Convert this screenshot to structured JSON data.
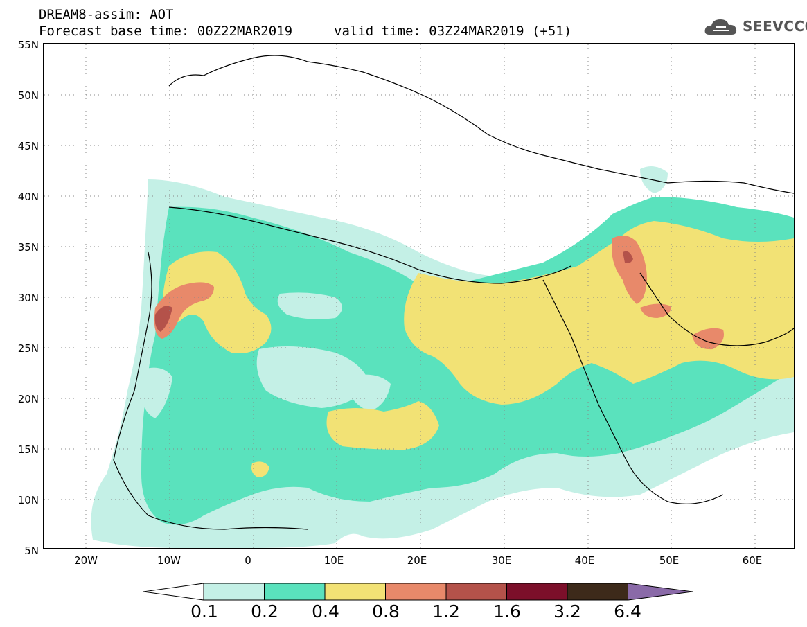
{
  "header": {
    "line1": "DREAM8-assim: AOT",
    "line2": "Forecast base time: 00Z22MAR2019",
    "line3": "valid time: 03Z24MAR2019 (+51)"
  },
  "logo": {
    "text": "SEEVCCC",
    "icon": "cloud-icon"
  },
  "map": {
    "lat_labels": [
      "55N",
      "50N",
      "45N",
      "40N",
      "35N",
      "30N",
      "25N",
      "20N",
      "15N",
      "10N",
      "5N"
    ],
    "lon_labels": [
      "20W",
      "10W",
      "0",
      "10E",
      "20E",
      "30E",
      "40E",
      "50E",
      "60E"
    ],
    "lat_range": [
      5,
      55
    ],
    "lon_range": [
      -25,
      65
    ],
    "gridlines": "dotted"
  },
  "colorbar": {
    "labels": [
      "0.1",
      "0.2",
      "0.4",
      "0.8",
      "1.2",
      "1.6",
      "3.2",
      "6.4"
    ],
    "colors": [
      "#ffffff",
      "#c4f0e6",
      "#5ae2bd",
      "#f2e275",
      "#e8896a",
      "#b4524a",
      "#7c0f2a",
      "#3d2a1a",
      "#8a6aa8"
    ]
  },
  "colors": {
    "c01": "#c4f0e6",
    "c02": "#5ae2bd",
    "c04": "#f2e275",
    "c08": "#e8896a",
    "c12": "#b4524a"
  }
}
